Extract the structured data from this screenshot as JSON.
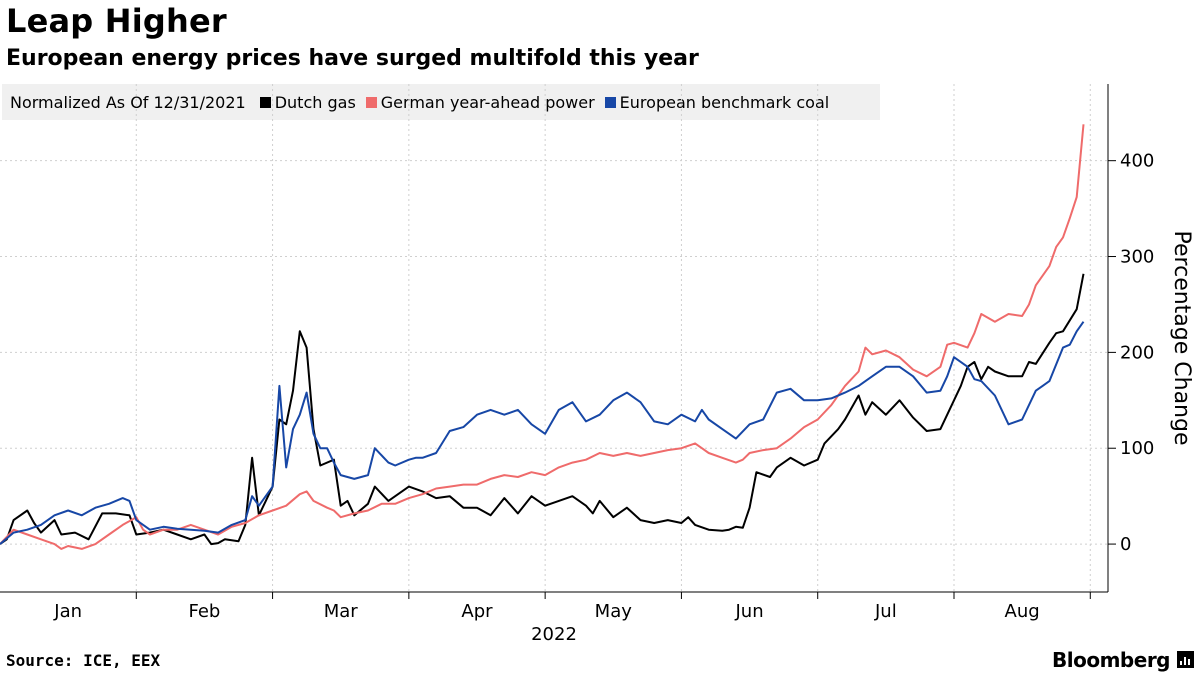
{
  "header": {
    "title": "Leap Higher",
    "subtitle": "European energy prices have surged multifold this year"
  },
  "legend": {
    "note": "Normalized As Of 12/31/2021",
    "items": [
      {
        "label": "Dutch gas",
        "color": "#000000"
      },
      {
        "label": "German year-ahead power",
        "color": "#ef6b6b"
      },
      {
        "label": "European benchmark coal",
        "color": "#1747a6"
      }
    ]
  },
  "footer": {
    "source": "Source: ICE, EEX",
    "brand": "Bloomberg"
  },
  "chart_data": {
    "type": "line",
    "title": "Leap Higher",
    "subtitle": "European energy prices have surged multifold this year",
    "xlabel": "2022",
    "ylabel": "Percentage Change",
    "ylim": [
      -50,
      480
    ],
    "yticks": [
      0,
      100,
      200,
      300,
      400
    ],
    "xlim": [
      0,
      8.13
    ],
    "month_ticks": [
      {
        "label": "Jan",
        "pos": 0.5
      },
      {
        "label": "Feb",
        "pos": 1.5
      },
      {
        "label": "Mar",
        "pos": 2.5
      },
      {
        "label": "Apr",
        "pos": 3.5
      },
      {
        "label": "May",
        "pos": 4.5
      },
      {
        "label": "Jun",
        "pos": 5.5
      },
      {
        "label": "Jul",
        "pos": 6.5
      },
      {
        "label": "Aug",
        "pos": 7.5
      }
    ],
    "month_bounds": [
      1,
      2,
      3,
      4,
      5,
      6,
      7,
      8
    ],
    "year_label": "2022",
    "grid": true,
    "legend_position": "top-left",
    "series": [
      {
        "name": "Dutch gas",
        "color": "#000000",
        "points": [
          [
            0,
            0
          ],
          [
            0.05,
            5
          ],
          [
            0.1,
            25
          ],
          [
            0.2,
            35
          ],
          [
            0.25,
            22
          ],
          [
            0.3,
            12
          ],
          [
            0.4,
            25
          ],
          [
            0.45,
            10
          ],
          [
            0.55,
            12
          ],
          [
            0.65,
            5
          ],
          [
            0.75,
            32
          ],
          [
            0.85,
            32
          ],
          [
            0.95,
            30
          ],
          [
            1.0,
            10
          ],
          [
            1.1,
            12
          ],
          [
            1.2,
            15
          ],
          [
            1.3,
            10
          ],
          [
            1.4,
            5
          ],
          [
            1.5,
            10
          ],
          [
            1.55,
            0
          ],
          [
            1.6,
            1
          ],
          [
            1.65,
            5
          ],
          [
            1.75,
            3
          ],
          [
            1.8,
            20
          ],
          [
            1.85,
            90
          ],
          [
            1.9,
            30
          ],
          [
            1.95,
            45
          ],
          [
            2.0,
            60
          ],
          [
            2.05,
            130
          ],
          [
            2.1,
            125
          ],
          [
            2.15,
            160
          ],
          [
            2.2,
            222
          ],
          [
            2.25,
            205
          ],
          [
            2.3,
            120
          ],
          [
            2.35,
            82
          ],
          [
            2.45,
            88
          ],
          [
            2.5,
            40
          ],
          [
            2.55,
            45
          ],
          [
            2.6,
            30
          ],
          [
            2.7,
            42
          ],
          [
            2.75,
            60
          ],
          [
            2.85,
            45
          ],
          [
            3.0,
            60
          ],
          [
            3.1,
            55
          ],
          [
            3.2,
            48
          ],
          [
            3.3,
            50
          ],
          [
            3.4,
            38
          ],
          [
            3.5,
            38
          ],
          [
            3.6,
            30
          ],
          [
            3.7,
            48
          ],
          [
            3.8,
            32
          ],
          [
            3.9,
            50
          ],
          [
            4.0,
            40
          ],
          [
            4.1,
            45
          ],
          [
            4.2,
            50
          ],
          [
            4.3,
            40
          ],
          [
            4.35,
            32
          ],
          [
            4.4,
            45
          ],
          [
            4.5,
            28
          ],
          [
            4.6,
            38
          ],
          [
            4.7,
            25
          ],
          [
            4.8,
            22
          ],
          [
            4.9,
            25
          ],
          [
            5.0,
            22
          ],
          [
            5.05,
            28
          ],
          [
            5.1,
            20
          ],
          [
            5.2,
            15
          ],
          [
            5.3,
            14
          ],
          [
            5.35,
            15
          ],
          [
            5.4,
            18
          ],
          [
            5.45,
            17
          ],
          [
            5.5,
            38
          ],
          [
            5.55,
            75
          ],
          [
            5.65,
            70
          ],
          [
            5.7,
            80
          ],
          [
            5.8,
            90
          ],
          [
            5.9,
            82
          ],
          [
            6.0,
            88
          ],
          [
            6.05,
            105
          ],
          [
            6.15,
            120
          ],
          [
            6.2,
            130
          ],
          [
            6.3,
            155
          ],
          [
            6.35,
            135
          ],
          [
            6.4,
            148
          ],
          [
            6.5,
            135
          ],
          [
            6.6,
            150
          ],
          [
            6.7,
            132
          ],
          [
            6.8,
            118
          ],
          [
            6.9,
            120
          ],
          [
            7.0,
            150
          ],
          [
            7.05,
            165
          ],
          [
            7.1,
            185
          ],
          [
            7.15,
            190
          ],
          [
            7.2,
            172
          ],
          [
            7.25,
            185
          ],
          [
            7.3,
            180
          ],
          [
            7.4,
            175
          ],
          [
            7.5,
            175
          ],
          [
            7.55,
            190
          ],
          [
            7.6,
            188
          ],
          [
            7.7,
            210
          ],
          [
            7.75,
            220
          ],
          [
            7.8,
            222
          ],
          [
            7.9,
            245
          ],
          [
            7.95,
            282
          ]
        ]
      },
      {
        "name": "German year-ahead power",
        "color": "#ef6b6b",
        "points": [
          [
            0,
            0
          ],
          [
            0.1,
            15
          ],
          [
            0.2,
            10
          ],
          [
            0.3,
            5
          ],
          [
            0.4,
            0
          ],
          [
            0.45,
            -5
          ],
          [
            0.5,
            -2
          ],
          [
            0.6,
            -5
          ],
          [
            0.7,
            0
          ],
          [
            0.8,
            10
          ],
          [
            0.9,
            20
          ],
          [
            1.0,
            28
          ],
          [
            1.05,
            15
          ],
          [
            1.1,
            10
          ],
          [
            1.2,
            15
          ],
          [
            1.3,
            15
          ],
          [
            1.4,
            20
          ],
          [
            1.5,
            15
          ],
          [
            1.6,
            10
          ],
          [
            1.7,
            18
          ],
          [
            1.8,
            22
          ],
          [
            1.9,
            30
          ],
          [
            2.0,
            35
          ],
          [
            2.1,
            40
          ],
          [
            2.2,
            52
          ],
          [
            2.25,
            55
          ],
          [
            2.3,
            45
          ],
          [
            2.4,
            38
          ],
          [
            2.45,
            35
          ],
          [
            2.5,
            28
          ],
          [
            2.6,
            32
          ],
          [
            2.7,
            35
          ],
          [
            2.8,
            42
          ],
          [
            2.9,
            42
          ],
          [
            3.0,
            48
          ],
          [
            3.1,
            52
          ],
          [
            3.2,
            58
          ],
          [
            3.3,
            60
          ],
          [
            3.4,
            62
          ],
          [
            3.5,
            62
          ],
          [
            3.6,
            68
          ],
          [
            3.7,
            72
          ],
          [
            3.8,
            70
          ],
          [
            3.9,
            75
          ],
          [
            4.0,
            72
          ],
          [
            4.1,
            80
          ],
          [
            4.2,
            85
          ],
          [
            4.3,
            88
          ],
          [
            4.4,
            95
          ],
          [
            4.5,
            92
          ],
          [
            4.6,
            95
          ],
          [
            4.7,
            92
          ],
          [
            4.8,
            95
          ],
          [
            4.9,
            98
          ],
          [
            5.0,
            100
          ],
          [
            5.1,
            105
          ],
          [
            5.15,
            100
          ],
          [
            5.2,
            95
          ],
          [
            5.3,
            90
          ],
          [
            5.4,
            85
          ],
          [
            5.45,
            88
          ],
          [
            5.5,
            95
          ],
          [
            5.6,
            98
          ],
          [
            5.7,
            100
          ],
          [
            5.8,
            110
          ],
          [
            5.9,
            122
          ],
          [
            6.0,
            130
          ],
          [
            6.1,
            145
          ],
          [
            6.2,
            165
          ],
          [
            6.3,
            180
          ],
          [
            6.35,
            205
          ],
          [
            6.4,
            198
          ],
          [
            6.5,
            202
          ],
          [
            6.6,
            195
          ],
          [
            6.7,
            182
          ],
          [
            6.8,
            175
          ],
          [
            6.9,
            185
          ],
          [
            6.95,
            208
          ],
          [
            7.0,
            210
          ],
          [
            7.1,
            205
          ],
          [
            7.15,
            220
          ],
          [
            7.2,
            240
          ],
          [
            7.3,
            232
          ],
          [
            7.4,
            240
          ],
          [
            7.5,
            238
          ],
          [
            7.55,
            250
          ],
          [
            7.6,
            270
          ],
          [
            7.7,
            290
          ],
          [
            7.75,
            310
          ],
          [
            7.8,
            320
          ],
          [
            7.85,
            340
          ],
          [
            7.9,
            362
          ],
          [
            7.95,
            438
          ]
        ]
      },
      {
        "name": "European benchmark coal",
        "color": "#1747a6",
        "points": [
          [
            0,
            0
          ],
          [
            0.1,
            12
          ],
          [
            0.2,
            15
          ],
          [
            0.3,
            20
          ],
          [
            0.4,
            30
          ],
          [
            0.5,
            35
          ],
          [
            0.6,
            30
          ],
          [
            0.7,
            38
          ],
          [
            0.8,
            42
          ],
          [
            0.9,
            48
          ],
          [
            0.95,
            45
          ],
          [
            1.0,
            25
          ],
          [
            1.1,
            15
          ],
          [
            1.2,
            18
          ],
          [
            1.3,
            16
          ],
          [
            1.4,
            15
          ],
          [
            1.5,
            14
          ],
          [
            1.6,
            12
          ],
          [
            1.7,
            20
          ],
          [
            1.8,
            25
          ],
          [
            1.85,
            50
          ],
          [
            1.9,
            40
          ],
          [
            2.0,
            60
          ],
          [
            2.05,
            165
          ],
          [
            2.1,
            80
          ],
          [
            2.15,
            120
          ],
          [
            2.2,
            135
          ],
          [
            2.25,
            158
          ],
          [
            2.3,
            115
          ],
          [
            2.35,
            100
          ],
          [
            2.4,
            100
          ],
          [
            2.45,
            85
          ],
          [
            2.5,
            72
          ],
          [
            2.6,
            68
          ],
          [
            2.7,
            72
          ],
          [
            2.75,
            100
          ],
          [
            2.85,
            85
          ],
          [
            2.9,
            82
          ],
          [
            3.0,
            88
          ],
          [
            3.05,
            90
          ],
          [
            3.1,
            90
          ],
          [
            3.2,
            95
          ],
          [
            3.3,
            118
          ],
          [
            3.4,
            122
          ],
          [
            3.5,
            135
          ],
          [
            3.6,
            140
          ],
          [
            3.7,
            135
          ],
          [
            3.8,
            140
          ],
          [
            3.9,
            125
          ],
          [
            4.0,
            115
          ],
          [
            4.1,
            140
          ],
          [
            4.2,
            148
          ],
          [
            4.3,
            128
          ],
          [
            4.4,
            135
          ],
          [
            4.5,
            150
          ],
          [
            4.6,
            158
          ],
          [
            4.7,
            148
          ],
          [
            4.8,
            128
          ],
          [
            4.9,
            125
          ],
          [
            5.0,
            135
          ],
          [
            5.1,
            128
          ],
          [
            5.15,
            140
          ],
          [
            5.2,
            130
          ],
          [
            5.3,
            120
          ],
          [
            5.4,
            110
          ],
          [
            5.5,
            125
          ],
          [
            5.6,
            130
          ],
          [
            5.7,
            158
          ],
          [
            5.8,
            162
          ],
          [
            5.9,
            150
          ],
          [
            6.0,
            150
          ],
          [
            6.1,
            152
          ],
          [
            6.2,
            158
          ],
          [
            6.3,
            165
          ],
          [
            6.4,
            175
          ],
          [
            6.5,
            185
          ],
          [
            6.6,
            185
          ],
          [
            6.7,
            175
          ],
          [
            6.8,
            158
          ],
          [
            6.9,
            160
          ],
          [
            6.95,
            175
          ],
          [
            7.0,
            195
          ],
          [
            7.1,
            185
          ],
          [
            7.15,
            172
          ],
          [
            7.2,
            170
          ],
          [
            7.3,
            155
          ],
          [
            7.4,
            125
          ],
          [
            7.5,
            130
          ],
          [
            7.6,
            160
          ],
          [
            7.65,
            165
          ],
          [
            7.7,
            170
          ],
          [
            7.8,
            205
          ],
          [
            7.85,
            208
          ],
          [
            7.9,
            222
          ],
          [
            7.95,
            232
          ]
        ]
      }
    ]
  }
}
